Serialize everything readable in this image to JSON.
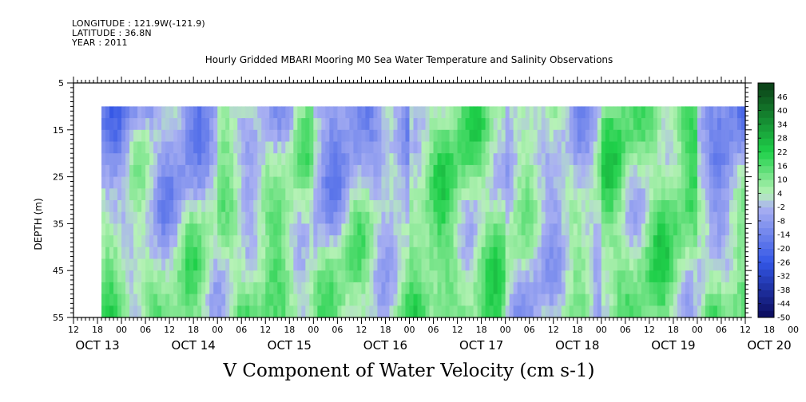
{
  "header": {
    "longitude": "LONGITUDE : 121.9W(-121.9)",
    "latitude": "LATITUDE : 36.8N",
    "year": "YEAR : 2011"
  },
  "chart_data": {
    "type": "heatmap",
    "title": "Hourly Gridded MBARI Mooring M0 Sea Water Temperature and Salinity Observations",
    "subtitle": "V Component of Water Velocity (cm s-1)",
    "ylabel": "DEPTH (m)",
    "y_range": [
      5,
      55
    ],
    "y_ticks": [
      5,
      15,
      25,
      35,
      45,
      55
    ],
    "y_reversed": true,
    "x_range_hours": [
      "OCT 13 12:00",
      "OCT 20 12:00"
    ],
    "x_hour_ticks": [
      "12",
      "18",
      "00",
      "06",
      "12",
      "18",
      "00",
      "06",
      "12",
      "18",
      "00",
      "06",
      "12",
      "18",
      "00",
      "06",
      "12",
      "18",
      "00",
      "06",
      "12",
      "18",
      "00",
      "06",
      "12",
      "18",
      "00",
      "06",
      "12",
      "18",
      "00",
      "06",
      "12"
    ],
    "x_day_labels": [
      "OCT 13",
      "OCT 14",
      "OCT 15",
      "OCT 16",
      "OCT 17",
      "OCT 18",
      "OCT 19",
      "OCT 20"
    ],
    "data_depth_range": [
      10,
      55
    ],
    "data_start": "OCT 13 19:00",
    "colorbar_levels": [
      46,
      40,
      34,
      28,
      22,
      16,
      10,
      4,
      -2,
      -8,
      -14,
      -20,
      -26,
      -32,
      -38,
      -44,
      -50
    ],
    "colorbar_range": [
      -50,
      52
    ],
    "colorbar_colors": {
      "strong_positive": "#0b3d16",
      "positive": "#1fd04a",
      "weak_positive": "#b6f2b6",
      "weak_negative": "#aab1f2",
      "negative": "#3356e6",
      "strong_negative": "#0a0a5a"
    },
    "regime_by_day": [
      {
        "day": "OCT 13",
        "upper": "negative",
        "lower": "positive"
      },
      {
        "day": "OCT 14",
        "upper": "negative",
        "lower": "positive"
      },
      {
        "day": "OCT 15",
        "upper": "mixed",
        "lower": "positive"
      },
      {
        "day": "OCT 16",
        "upper": "negative",
        "lower": "positive"
      },
      {
        "day": "OCT 17",
        "upper": "positive",
        "lower": "positive"
      },
      {
        "day": "OCT 18",
        "upper": "mixed",
        "lower": "mixed"
      },
      {
        "day": "OCT 19",
        "upper": "positive",
        "lower": "positive"
      },
      {
        "day": "OCT 20",
        "upper": "negative",
        "lower": "positive"
      }
    ]
  }
}
